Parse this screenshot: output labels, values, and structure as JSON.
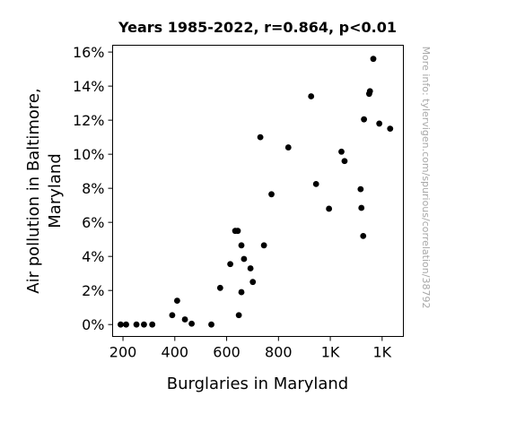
{
  "chart_data": {
    "type": "scatter",
    "title": "Years 1985-2022, r=0.864, p<0.01",
    "xlabel": "Burglaries in Maryland",
    "ylabel_lines": [
      "Air pollution in Baltimore,",
      "Maryland"
    ],
    "xlim": [
      160,
      1282
    ],
    "ylim": [
      -0.7,
      16.4
    ],
    "x_ticks": [
      {
        "value": 200,
        "label": "200"
      },
      {
        "value": 400,
        "label": "400"
      },
      {
        "value": 600,
        "label": "600"
      },
      {
        "value": 800,
        "label": "800"
      },
      {
        "value": 1000,
        "label": "1K"
      },
      {
        "value": 1200,
        "label": "1K"
      }
    ],
    "y_ticks": [
      {
        "value": 0,
        "label": "0%"
      },
      {
        "value": 2,
        "label": "2%"
      },
      {
        "value": 4,
        "label": "4%"
      },
      {
        "value": 6,
        "label": "6%"
      },
      {
        "value": 8,
        "label": "8%"
      },
      {
        "value": 10,
        "label": "10%"
      },
      {
        "value": 12,
        "label": "12%"
      },
      {
        "value": 14,
        "label": "14%"
      },
      {
        "value": 16,
        "label": "16%"
      }
    ],
    "point_color": "#000000",
    "points": [
      {
        "x": 191,
        "y": 0.0
      },
      {
        "x": 212,
        "y": 0.0
      },
      {
        "x": 252,
        "y": 0.0
      },
      {
        "x": 281,
        "y": 0.0
      },
      {
        "x": 313,
        "y": 0.0
      },
      {
        "x": 390,
        "y": 0.55
      },
      {
        "x": 409,
        "y": 1.4
      },
      {
        "x": 439,
        "y": 0.3
      },
      {
        "x": 465,
        "y": 0.05
      },
      {
        "x": 541,
        "y": 0.0
      },
      {
        "x": 575,
        "y": 2.15
      },
      {
        "x": 614,
        "y": 3.55
      },
      {
        "x": 633,
        "y": 5.5
      },
      {
        "x": 643,
        "y": 5.5
      },
      {
        "x": 647,
        "y": 0.55
      },
      {
        "x": 657,
        "y": 1.9
      },
      {
        "x": 657,
        "y": 4.65
      },
      {
        "x": 667,
        "y": 3.85
      },
      {
        "x": 692,
        "y": 3.3
      },
      {
        "x": 701,
        "y": 2.5
      },
      {
        "x": 730,
        "y": 11.0
      },
      {
        "x": 744,
        "y": 4.65
      },
      {
        "x": 773,
        "y": 7.65
      },
      {
        "x": 838,
        "y": 10.4
      },
      {
        "x": 926,
        "y": 13.4
      },
      {
        "x": 945,
        "y": 8.25
      },
      {
        "x": 995,
        "y": 6.8
      },
      {
        "x": 1043,
        "y": 10.15
      },
      {
        "x": 1055,
        "y": 9.6
      },
      {
        "x": 1117,
        "y": 7.95
      },
      {
        "x": 1120,
        "y": 6.85
      },
      {
        "x": 1127,
        "y": 5.2
      },
      {
        "x": 1130,
        "y": 12.05
      },
      {
        "x": 1150,
        "y": 13.55
      },
      {
        "x": 1153,
        "y": 13.7
      },
      {
        "x": 1166,
        "y": 15.6
      },
      {
        "x": 1189,
        "y": 11.8
      },
      {
        "x": 1231,
        "y": 11.5
      }
    ]
  },
  "watermark": "More info: tylervigen.com/spurious/correlation/38792"
}
